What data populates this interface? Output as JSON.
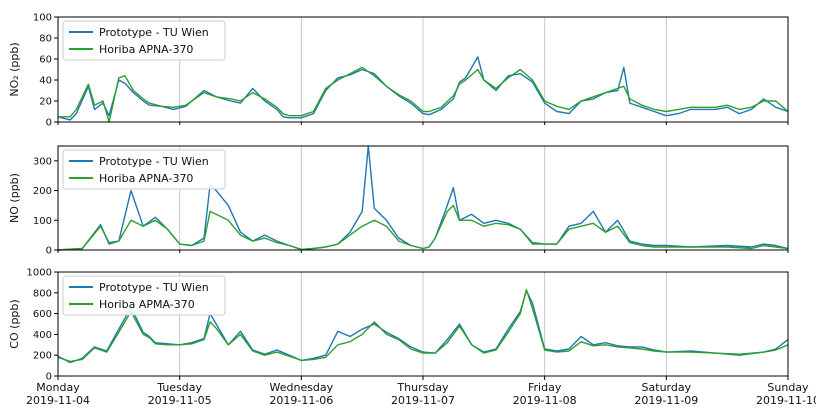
{
  "chart_data": [
    {
      "type": "line",
      "ylabel": "NO₂ (ppb)",
      "ylim": [
        0,
        100
      ],
      "yticks": [
        "0",
        "20",
        "40",
        "60",
        "80",
        "100"
      ],
      "xlim": [
        0,
        6
      ],
      "grid": "vertical",
      "legend": "top-left",
      "series": [
        {
          "name": "Prototype - TU Wien",
          "color": "#1f77b4",
          "x": [
            0,
            0.1,
            0.15,
            0.25,
            0.3,
            0.37,
            0.42,
            0.5,
            0.55,
            0.62,
            0.7,
            0.75,
            0.85,
            0.95,
            1.05,
            1.2,
            1.3,
            1.42,
            1.5,
            1.6,
            1.7,
            1.8,
            1.85,
            1.9,
            2.0,
            2.1,
            2.2,
            2.3,
            2.4,
            2.5,
            2.6,
            2.7,
            2.8,
            2.9,
            3.0,
            3.05,
            3.15,
            3.25,
            3.3,
            3.35,
            3.45,
            3.5,
            3.6,
            3.7,
            3.8,
            3.9,
            4.0,
            4.1,
            4.2,
            4.3,
            4.4,
            4.5,
            4.6,
            4.65,
            4.7,
            4.8,
            4.9,
            5.0,
            5.1,
            5.2,
            5.3,
            5.4,
            5.5,
            5.6,
            5.7,
            5.8,
            5.9,
            6.0
          ],
          "y": [
            5,
            2,
            8,
            34,
            12,
            18,
            6,
            40,
            37,
            28,
            20,
            16,
            15,
            12,
            15,
            30,
            24,
            20,
            18,
            32,
            20,
            12,
            5,
            4,
            4,
            8,
            30,
            42,
            45,
            50,
            46,
            34,
            25,
            18,
            8,
            7,
            12,
            22,
            38,
            42,
            62,
            40,
            30,
            44,
            46,
            38,
            18,
            10,
            8,
            20,
            22,
            28,
            30,
            52,
            18,
            14,
            10,
            6,
            8,
            12,
            12,
            12,
            14,
            8,
            12,
            22,
            14,
            10
          ]
        },
        {
          "name": "Horiba APNA-370",
          "color": "#2ca02c",
          "x": [
            0,
            0.1,
            0.15,
            0.25,
            0.3,
            0.37,
            0.42,
            0.5,
            0.55,
            0.62,
            0.7,
            0.75,
            0.85,
            0.95,
            1.05,
            1.2,
            1.3,
            1.42,
            1.5,
            1.6,
            1.7,
            1.8,
            1.85,
            1.9,
            2.0,
            2.1,
            2.2,
            2.3,
            2.4,
            2.5,
            2.6,
            2.7,
            2.8,
            2.9,
            3.0,
            3.05,
            3.15,
            3.25,
            3.3,
            3.35,
            3.45,
            3.5,
            3.6,
            3.7,
            3.8,
            3.9,
            4.0,
            4.1,
            4.2,
            4.3,
            4.4,
            4.5,
            4.6,
            4.65,
            4.7,
            4.8,
            4.9,
            5.0,
            5.1,
            5.2,
            5.3,
            5.4,
            5.5,
            5.6,
            5.7,
            5.8,
            5.9,
            6.0
          ],
          "y": [
            5,
            5,
            12,
            36,
            16,
            20,
            0,
            42,
            44,
            30,
            22,
            18,
            15,
            14,
            16,
            28,
            24,
            22,
            20,
            28,
            22,
            14,
            8,
            6,
            6,
            10,
            32,
            40,
            46,
            52,
            44,
            34,
            26,
            20,
            10,
            10,
            14,
            25,
            36,
            40,
            50,
            40,
            32,
            42,
            50,
            40,
            20,
            15,
            12,
            20,
            24,
            28,
            32,
            34,
            22,
            16,
            12,
            10,
            12,
            14,
            14,
            14,
            16,
            12,
            14,
            20,
            20,
            10
          ]
        }
      ]
    },
    {
      "type": "line",
      "ylabel": "NO (ppb)",
      "ylim": [
        0,
        350
      ],
      "yticks": [
        "0",
        "100",
        "200",
        "300"
      ],
      "xlim": [
        0,
        6
      ],
      "grid": "vertical",
      "legend": "top-left",
      "series": [
        {
          "name": "Prototype - TU Wien",
          "color": "#1f77b4",
          "x": [
            0,
            0.2,
            0.35,
            0.42,
            0.5,
            0.6,
            0.7,
            0.8,
            0.9,
            1.0,
            1.1,
            1.2,
            1.25,
            1.3,
            1.4,
            1.5,
            1.6,
            1.7,
            1.8,
            1.9,
            2.0,
            2.1,
            2.2,
            2.3,
            2.4,
            2.5,
            2.55,
            2.6,
            2.7,
            2.8,
            2.9,
            3.0,
            3.05,
            3.1,
            3.2,
            3.25,
            3.3,
            3.4,
            3.5,
            3.6,
            3.7,
            3.8,
            3.9,
            4.0,
            4.1,
            4.2,
            4.3,
            4.4,
            4.5,
            4.6,
            4.7,
            4.8,
            4.9,
            5.0,
            5.2,
            5.5,
            5.7,
            5.8,
            5.9,
            6.0
          ],
          "y": [
            0,
            5,
            85,
            20,
            30,
            200,
            80,
            110,
            70,
            20,
            15,
            40,
            220,
            200,
            150,
            60,
            30,
            50,
            30,
            15,
            2,
            5,
            10,
            20,
            60,
            130,
            350,
            140,
            100,
            40,
            15,
            5,
            10,
            40,
            150,
            210,
            100,
            120,
            90,
            100,
            90,
            70,
            25,
            20,
            20,
            80,
            90,
            130,
            60,
            100,
            30,
            20,
            15,
            15,
            10,
            15,
            10,
            20,
            15,
            5
          ]
        },
        {
          "name": "Horiba APNA-370",
          "color": "#2ca02c",
          "x": [
            0,
            0.2,
            0.35,
            0.42,
            0.5,
            0.6,
            0.7,
            0.8,
            0.9,
            1.0,
            1.1,
            1.2,
            1.25,
            1.3,
            1.4,
            1.5,
            1.6,
            1.7,
            1.8,
            1.9,
            2.0,
            2.1,
            2.2,
            2.3,
            2.4,
            2.5,
            2.55,
            2.6,
            2.7,
            2.8,
            2.9,
            3.0,
            3.05,
            3.1,
            3.2,
            3.25,
            3.3,
            3.4,
            3.5,
            3.6,
            3.7,
            3.8,
            3.9,
            4.0,
            4.1,
            4.2,
            4.3,
            4.4,
            4.5,
            4.6,
            4.7,
            4.8,
            4.9,
            5.0,
            5.2,
            5.5,
            5.7,
            5.8,
            5.9,
            6.0
          ],
          "y": [
            0,
            5,
            80,
            25,
            30,
            100,
            80,
            100,
            70,
            20,
            15,
            30,
            130,
            120,
            100,
            50,
            30,
            40,
            25,
            15,
            2,
            5,
            10,
            20,
            50,
            80,
            90,
            100,
            80,
            30,
            15,
            5,
            10,
            40,
            130,
            150,
            100,
            100,
            80,
            90,
            85,
            70,
            20,
            20,
            20,
            70,
            80,
            90,
            60,
            80,
            25,
            15,
            10,
            10,
            10,
            10,
            5,
            15,
            10,
            5
          ]
        }
      ]
    },
    {
      "type": "line",
      "ylabel": "CO (ppb)",
      "ylim": [
        0,
        1000
      ],
      "yticks": [
        "0",
        "200",
        "400",
        "600",
        "800",
        "1000"
      ],
      "xlim": [
        0,
        6
      ],
      "grid": "vertical",
      "legend": "top-left",
      "xticks": [
        {
          "x": 0,
          "day": "Monday",
          "date": "2019-11-04"
        },
        {
          "x": 1,
          "day": "Tuesday",
          "date": "2019-11-05"
        },
        {
          "x": 2,
          "day": "Wednesday",
          "date": "2019-11-06"
        },
        {
          "x": 3,
          "day": "Thursday",
          "date": "2019-11-07"
        },
        {
          "x": 4,
          "day": "Friday",
          "date": "2019-11-08"
        },
        {
          "x": 5,
          "day": "Saturday",
          "date": "2019-11-09"
        },
        {
          "x": 6,
          "day": "Sunday",
          "date": "2019-11-10"
        }
      ],
      "series": [
        {
          "name": "Prototype - TU Wien",
          "color": "#1f77b4",
          "x": [
            0,
            0.1,
            0.2,
            0.3,
            0.4,
            0.5,
            0.6,
            0.7,
            0.75,
            0.8,
            0.9,
            1.0,
            1.1,
            1.2,
            1.25,
            1.3,
            1.4,
            1.5,
            1.6,
            1.7,
            1.8,
            1.9,
            2.0,
            2.1,
            2.2,
            2.3,
            2.4,
            2.5,
            2.6,
            2.7,
            2.8,
            2.9,
            3.0,
            3.1,
            3.2,
            3.3,
            3.4,
            3.5,
            3.6,
            3.7,
            3.8,
            3.85,
            3.9,
            4.0,
            4.1,
            4.2,
            4.3,
            4.4,
            4.5,
            4.6,
            4.7,
            4.8,
            4.9,
            5.0,
            5.2,
            5.4,
            5.6,
            5.8,
            5.9,
            6.0
          ],
          "y": [
            190,
            130,
            170,
            280,
            240,
            450,
            660,
            420,
            380,
            320,
            310,
            300,
            320,
            360,
            600,
            500,
            300,
            430,
            250,
            210,
            250,
            200,
            150,
            170,
            200,
            430,
            380,
            450,
            500,
            420,
            360,
            280,
            230,
            220,
            350,
            500,
            300,
            230,
            260,
            450,
            620,
            820,
            700,
            260,
            240,
            260,
            380,
            300,
            320,
            290,
            280,
            280,
            250,
            230,
            240,
            220,
            200,
            230,
            260,
            350
          ]
        },
        {
          "name": "Horiba APMA-370",
          "color": "#2ca02c",
          "x": [
            0,
            0.1,
            0.2,
            0.3,
            0.4,
            0.5,
            0.6,
            0.7,
            0.75,
            0.8,
            0.9,
            1.0,
            1.1,
            1.2,
            1.25,
            1.3,
            1.4,
            1.5,
            1.6,
            1.7,
            1.8,
            1.9,
            2.0,
            2.1,
            2.2,
            2.3,
            2.4,
            2.5,
            2.6,
            2.7,
            2.8,
            2.9,
            3.0,
            3.1,
            3.2,
            3.3,
            3.4,
            3.5,
            3.6,
            3.7,
            3.8,
            3.85,
            3.9,
            4.0,
            4.1,
            4.2,
            4.3,
            4.4,
            4.5,
            4.6,
            4.7,
            4.8,
            4.9,
            5.0,
            5.2,
            5.4,
            5.6,
            5.8,
            5.9,
            6.0
          ],
          "y": [
            180,
            140,
            160,
            270,
            230,
            420,
            620,
            400,
            370,
            310,
            300,
            300,
            310,
            350,
            520,
            460,
            300,
            400,
            240,
            200,
            230,
            190,
            150,
            160,
            180,
            300,
            330,
            400,
            520,
            400,
            350,
            260,
            220,
            220,
            320,
            480,
            300,
            220,
            250,
            420,
            600,
            830,
            650,
            250,
            230,
            240,
            330,
            290,
            300,
            280,
            270,
            260,
            240,
            230,
            230,
            220,
            210,
            230,
            250,
            300
          ]
        }
      ]
    }
  ]
}
